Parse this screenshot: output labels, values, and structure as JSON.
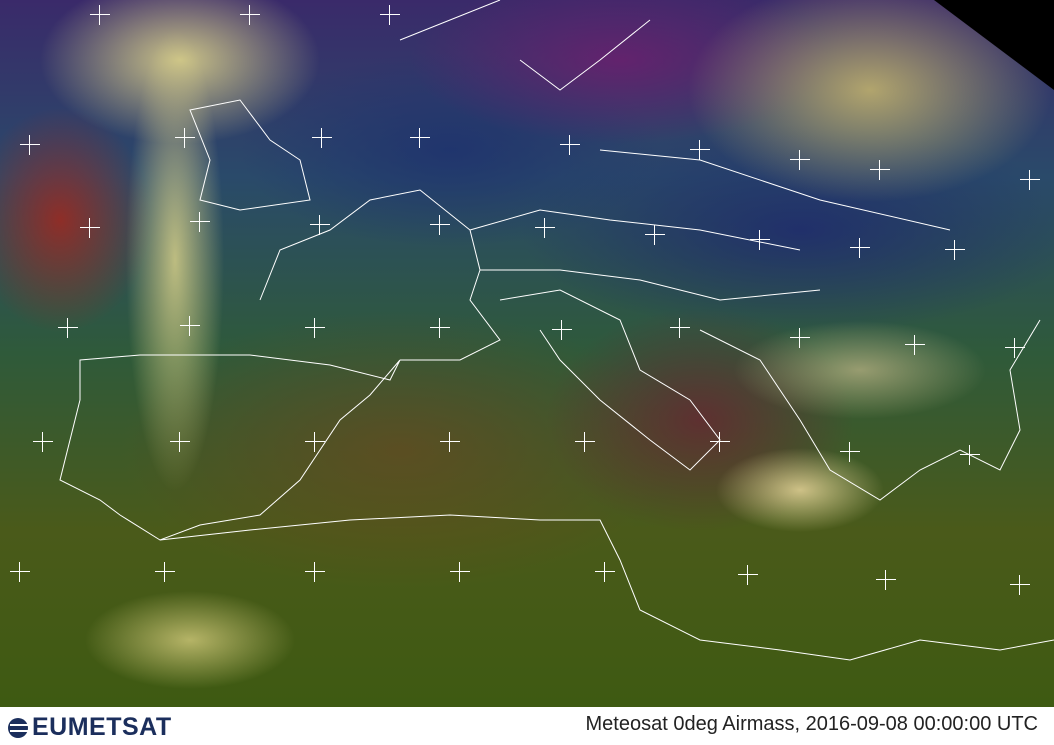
{
  "image": {
    "type": "satellite-imagery",
    "product": "airmass-rgb",
    "region": "Europe / Mediterranean"
  },
  "footer": {
    "logo_text": "EUMETSAT",
    "caption": "Meteosat 0deg Airmass, 2016-09-08 00:00:00 UTC"
  },
  "colors": {
    "logo": "#1b2e5c",
    "caption": "#222222",
    "graticule": "#ffffff"
  }
}
